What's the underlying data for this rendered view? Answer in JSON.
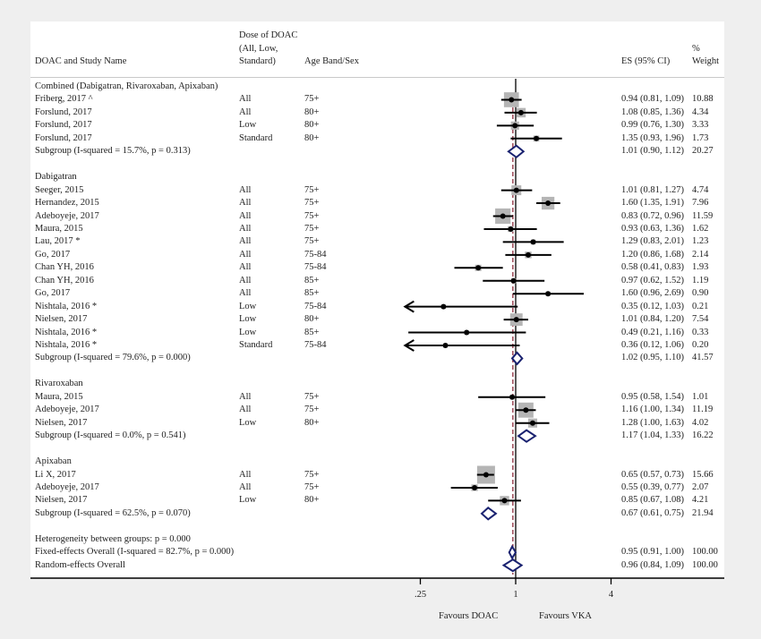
{
  "chart_data": {
    "type": "forest",
    "xscale": "log",
    "xlim": [
      0.2,
      6.0
    ],
    "null_value": 1,
    "overall_reference_line": 0.96,
    "x_ticks": [
      {
        "value": 0.25,
        "label": ".25"
      },
      {
        "value": 1,
        "label": "1"
      },
      {
        "value": 4,
        "label": "4"
      }
    ],
    "favours_left": "Favours DOAC",
    "favours_right": "Favours VKA",
    "columns": {
      "study": "DOAC and Study Name",
      "dose_line1": "Dose of DOAC",
      "dose_line2": "(All, Low,",
      "dose_line3": "Standard)",
      "age": "Age Band/Sex",
      "es": "ES (95% CI)",
      "weight_line1": "%",
      "weight_line2": "Weight"
    },
    "rows": [
      {
        "kind": "group",
        "label": "Combined (Dabigatran, Rivaroxaban, Apixaban)"
      },
      {
        "kind": "study",
        "label": "Friberg, 2017 ^",
        "dose": "All",
        "age": "75+",
        "es": 0.94,
        "lo": 0.81,
        "hi": 1.09,
        "es_text": "0.94 (0.81, 1.09)",
        "weight": "10.88"
      },
      {
        "kind": "study",
        "label": "Forslund, 2017",
        "dose": "All",
        "age": "80+",
        "es": 1.08,
        "lo": 0.85,
        "hi": 1.36,
        "es_text": "1.08 (0.85, 1.36)",
        "weight": "4.34"
      },
      {
        "kind": "study",
        "label": "Forslund, 2017",
        "dose": "Low",
        "age": "80+",
        "es": 0.99,
        "lo": 0.76,
        "hi": 1.3,
        "es_text": "0.99 (0.76, 1.30)",
        "weight": "3.33"
      },
      {
        "kind": "study",
        "label": "Forslund, 2017",
        "dose": "Standard",
        "age": "80+",
        "es": 1.35,
        "lo": 0.93,
        "hi": 1.96,
        "es_text": "1.35 (0.93, 1.96)",
        "weight": "1.73"
      },
      {
        "kind": "subgroup",
        "label": "Subgroup (I-squared = 15.7%, p = 0.313)",
        "es": 1.01,
        "lo": 0.9,
        "hi": 1.12,
        "es_text": "1.01 (0.90, 1.12)",
        "weight": "20.27"
      },
      {
        "kind": "blank"
      },
      {
        "kind": "group",
        "label": "Dabigatran"
      },
      {
        "kind": "study",
        "label": "Seeger, 2015",
        "dose": "All",
        "age": "75+",
        "es": 1.01,
        "lo": 0.81,
        "hi": 1.27,
        "es_text": "1.01 (0.81, 1.27)",
        "weight": "4.74"
      },
      {
        "kind": "study",
        "label": "Hernandez, 2015",
        "dose": "All",
        "age": "75+",
        "es": 1.6,
        "lo": 1.35,
        "hi": 1.91,
        "es_text": "1.60 (1.35, 1.91)",
        "weight": "7.96"
      },
      {
        "kind": "study",
        "label": "Adeboyeje, 2017",
        "dose": "All",
        "age": "75+",
        "es": 0.83,
        "lo": 0.72,
        "hi": 0.96,
        "es_text": "0.83 (0.72, 0.96)",
        "weight": "11.59"
      },
      {
        "kind": "study",
        "label": "Maura, 2015",
        "dose": "All",
        "age": "75+",
        "es": 0.93,
        "lo": 0.63,
        "hi": 1.36,
        "es_text": "0.93 (0.63, 1.36)",
        "weight": "1.62"
      },
      {
        "kind": "study",
        "label": "Lau, 2017 *",
        "dose": "All",
        "age": "75+",
        "es": 1.29,
        "lo": 0.83,
        "hi": 2.01,
        "es_text": "1.29 (0.83, 2.01)",
        "weight": "1.23"
      },
      {
        "kind": "study",
        "label": "Go, 2017",
        "dose": "All",
        "age": "75-84",
        "es": 1.2,
        "lo": 0.86,
        "hi": 1.68,
        "es_text": "1.20 (0.86, 1.68)",
        "weight": "2.14"
      },
      {
        "kind": "study",
        "label": "Chan YH, 2016",
        "dose": "All",
        "age": "75-84",
        "es": 0.58,
        "lo": 0.41,
        "hi": 0.83,
        "es_text": "0.58 (0.41, 0.83)",
        "weight": "1.93"
      },
      {
        "kind": "study",
        "label": "Chan YH, 2016",
        "dose": "All",
        "age": "85+",
        "es": 0.97,
        "lo": 0.62,
        "hi": 1.52,
        "es_text": "0.97 (0.62, 1.52)",
        "weight": "1.19"
      },
      {
        "kind": "study",
        "label": "Go, 2017",
        "dose": "All",
        "age": "85+",
        "es": 1.6,
        "lo": 0.96,
        "hi": 2.69,
        "es_text": "1.60 (0.96, 2.69)",
        "weight": "0.90"
      },
      {
        "kind": "study",
        "label": "Nishtala, 2016 *",
        "dose": "Low",
        "age": "75-84",
        "es": 0.35,
        "lo": 0.12,
        "hi": 1.03,
        "es_text": "0.35 (0.12, 1.03)",
        "weight": "0.21"
      },
      {
        "kind": "study",
        "label": "Nielsen, 2017",
        "dose": "Low",
        "age": "80+",
        "es": 1.01,
        "lo": 0.84,
        "hi": 1.2,
        "es_text": "1.01 (0.84, 1.20)",
        "weight": "7.54"
      },
      {
        "kind": "study",
        "label": "Nishtala, 2016 *",
        "dose": "Low",
        "age": "85+",
        "es": 0.49,
        "lo": 0.21,
        "hi": 1.16,
        "es_text": "0.49 (0.21, 1.16)",
        "weight": "0.33"
      },
      {
        "kind": "study",
        "label": "Nishtala, 2016 *",
        "dose": "Standard",
        "age": "75-84",
        "es": 0.36,
        "lo": 0.12,
        "hi": 1.06,
        "es_text": "0.36 (0.12, 1.06)",
        "weight": "0.20"
      },
      {
        "kind": "subgroup",
        "label": "Subgroup (I-squared = 79.6%, p = 0.000)",
        "es": 1.02,
        "lo": 0.95,
        "hi": 1.1,
        "es_text": "1.02 (0.95, 1.10)",
        "weight": "41.57"
      },
      {
        "kind": "blank"
      },
      {
        "kind": "group",
        "label": "Rivaroxaban"
      },
      {
        "kind": "study",
        "label": "Maura, 2015",
        "dose": "All",
        "age": "75+",
        "es": 0.95,
        "lo": 0.58,
        "hi": 1.54,
        "es_text": "0.95 (0.58, 1.54)",
        "weight": "1.01"
      },
      {
        "kind": "study",
        "label": "Adeboyeje, 2017",
        "dose": "All",
        "age": "75+",
        "es": 1.16,
        "lo": 1.0,
        "hi": 1.34,
        "es_text": "1.16 (1.00, 1.34)",
        "weight": "11.19"
      },
      {
        "kind": "study",
        "label": "Nielsen, 2017",
        "dose": "Low",
        "age": "80+",
        "es": 1.28,
        "lo": 1.0,
        "hi": 1.63,
        "es_text": "1.28 (1.00, 1.63)",
        "weight": "4.02"
      },
      {
        "kind": "subgroup",
        "label": "Subgroup (I-squared = 0.0%, p = 0.541)",
        "es": 1.17,
        "lo": 1.04,
        "hi": 1.33,
        "es_text": "1.17 (1.04, 1.33)",
        "weight": "16.22"
      },
      {
        "kind": "blank"
      },
      {
        "kind": "group",
        "label": "Apixaban"
      },
      {
        "kind": "study",
        "label": "Li X, 2017",
        "dose": "All",
        "age": "75+",
        "es": 0.65,
        "lo": 0.57,
        "hi": 0.73,
        "es_text": "0.65 (0.57, 0.73)",
        "weight": "15.66"
      },
      {
        "kind": "study",
        "label": "Adeboyeje, 2017",
        "dose": "All",
        "age": "75+",
        "es": 0.55,
        "lo": 0.39,
        "hi": 0.77,
        "es_text": "0.55 (0.39, 0.77)",
        "weight": "2.07"
      },
      {
        "kind": "study",
        "label": "Nielsen, 2017",
        "dose": "Low",
        "age": "80+",
        "es": 0.85,
        "lo": 0.67,
        "hi": 1.08,
        "es_text": "0.85 (0.67, 1.08)",
        "weight": "4.21"
      },
      {
        "kind": "subgroup",
        "label": "Subgroup (I-squared = 62.5%, p = 0.070)",
        "es": 0.67,
        "lo": 0.61,
        "hi": 0.75,
        "es_text": "0.67 (0.61, 0.75)",
        "weight": "21.94"
      },
      {
        "kind": "blank"
      },
      {
        "kind": "note",
        "label": "Heterogeneity between groups: p = 0.000"
      },
      {
        "kind": "overall",
        "label": "Fixed-effects Overall (I-squared = 82.7%, p = 0.000)",
        "es": 0.95,
        "lo": 0.91,
        "hi": 1.0,
        "es_text": "0.95 (0.91, 1.00)",
        "weight": "100.00"
      },
      {
        "kind": "overall",
        "label": "Random-effects Overall",
        "es": 0.96,
        "lo": 0.84,
        "hi": 1.09,
        "es_text": "0.96 (0.84, 1.09)",
        "weight": "100.00"
      }
    ],
    "colors": {
      "ci_line": "#000000",
      "weight_box": "#b5b5b5",
      "point": "#000000",
      "diamond": "#1a2270",
      "null_line": "#000000",
      "overall_line": "#8b2a3a"
    }
  }
}
